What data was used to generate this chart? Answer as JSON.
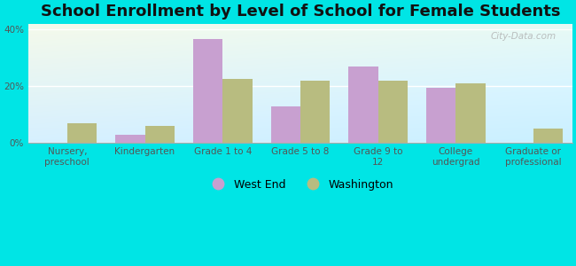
{
  "title": "School Enrollment by Level of School for Female Students",
  "categories": [
    "Nursery,\npreschool",
    "Kindergarten",
    "Grade 1 to 4",
    "Grade 5 to 8",
    "Grade 9 to\n12",
    "College\nundergrad",
    "Graduate or\nprofessional"
  ],
  "west_end": [
    0.0,
    3.0,
    36.5,
    13.0,
    27.0,
    19.5,
    0.0
  ],
  "washington": [
    7.0,
    6.0,
    22.5,
    22.0,
    22.0,
    21.0,
    5.0
  ],
  "west_end_color": "#c8a0d0",
  "washington_color": "#b8bc80",
  "ylim": [
    0,
    42
  ],
  "yticks": [
    0,
    20,
    40
  ],
  "ytick_labels": [
    "0%",
    "20%",
    "40%"
  ],
  "background_color": "#00e5e5",
  "title_fontsize": 13,
  "tick_fontsize": 7.5,
  "legend_fontsize": 9,
  "bar_width": 0.38,
  "watermark": "City-Data.com"
}
